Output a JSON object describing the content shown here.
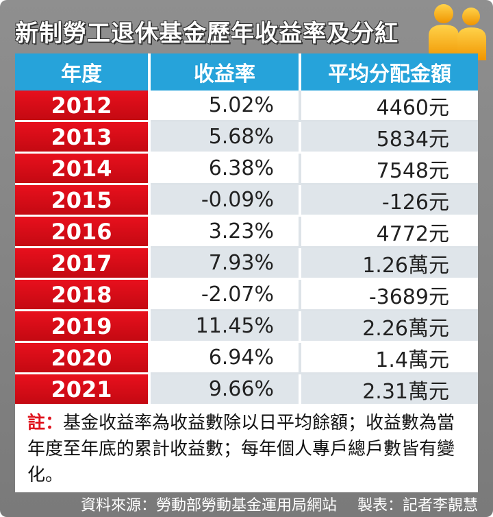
{
  "title": "新制勞工退休基金歷年收益率及分紅",
  "headers": {
    "year": "年度",
    "rate": "收益率",
    "amount": "平均分配金額"
  },
  "rows": [
    {
      "year": "2012",
      "rate": "5.02%",
      "amount": "4460元"
    },
    {
      "year": "2013",
      "rate": "5.68%",
      "amount": "5834元"
    },
    {
      "year": "2014",
      "rate": "6.38%",
      "amount": "7548元"
    },
    {
      "year": "2015",
      "rate": "-0.09%",
      "amount": "-126元"
    },
    {
      "year": "2016",
      "rate": "3.23%",
      "amount": "4772元"
    },
    {
      "year": "2017",
      "rate": "7.93%",
      "amount": "1.26萬元"
    },
    {
      "year": "2018",
      "rate": "-2.07%",
      "amount": "-3689元"
    },
    {
      "year": "2019",
      "rate": "11.45%",
      "amount": "2.26萬元"
    },
    {
      "year": "2020",
      "rate": "6.94%",
      "amount": "1.4萬元"
    },
    {
      "year": "2021",
      "rate": "9.66%",
      "amount": "2.31萬元"
    }
  ],
  "note": {
    "label": "註：",
    "text": "基金收益率為收益數除以日平均餘額；收益數為當年度至年底的累計收益數；每年個人專戶總戶數皆有變化。"
  },
  "footer": {
    "source": "資料來源：勞動部勞動基金運用局網站",
    "credit": "製表：記者李靚慧"
  },
  "colors": {
    "header_blue": "#26a3da",
    "year_red": "#e8101d",
    "frame_gray": "#8f8f8f",
    "icon_orange": "#f5a300"
  },
  "icons": {
    "title_icon": "people-icon"
  }
}
